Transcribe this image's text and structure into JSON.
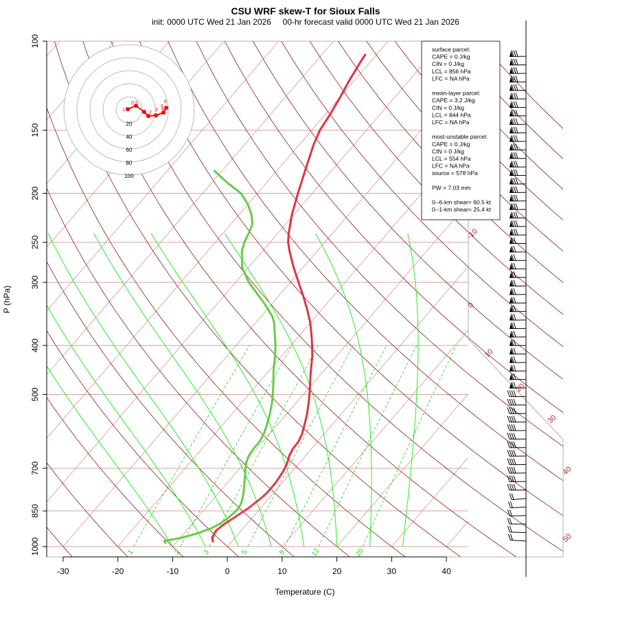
{
  "chart_data": {
    "type": "skew-t",
    "title": "CSU WRF skew-T for Sioux Falls",
    "subtitle": "init: 0000 UTC Wed 21 Jan 2026     00-hr forecast valid 0000 UTC Wed 21 Jan 2026",
    "xlabel": "Temperature (C)",
    "ylabel": "P (hPa)",
    "xlim": [
      -33,
      44
    ],
    "ylim": [
      1000,
      100
    ],
    "y_log_scale": true,
    "x_ticks": [
      -30,
      -20,
      -10,
      0,
      10,
      20,
      30,
      40
    ],
    "p_ticks": [
      100,
      150,
      200,
      250,
      300,
      400,
      500,
      700,
      850,
      1000
    ],
    "p_gridlines": [
      100,
      150,
      200,
      250,
      300,
      400,
      500,
      700,
      850,
      1000
    ],
    "isotherm_labels": [
      "-10",
      "0",
      "10",
      "20",
      "30",
      "40",
      "50"
    ],
    "mixing_ratio_labels": [
      "1",
      "2",
      "3",
      "5",
      "8",
      "12",
      "20"
    ],
    "colors": {
      "temperature": "#dd3344",
      "dewpoint": "#66cc44",
      "virtual_temperature": "#ee6677",
      "dry_adiabat": "#8b1a1a",
      "moist_adiabat": "#22ee22",
      "mixing_ratio": "#22cc22",
      "isotherm": "#d9a0a0",
      "isobar": "#d9a0a0",
      "hodograph_trace": "#ff0000"
    },
    "series": [
      {
        "name": "temperature",
        "points": [
          {
            "p": 980,
            "t": -3.3
          },
          {
            "p": 960,
            "t": -4.2
          },
          {
            "p": 930,
            "t": -4.6
          },
          {
            "p": 900,
            "t": -4.0
          },
          {
            "p": 880,
            "t": -3.4
          },
          {
            "p": 860,
            "t": -2.8
          },
          {
            "p": 840,
            "t": -2.2
          },
          {
            "p": 820,
            "t": -1.8
          },
          {
            "p": 800,
            "t": -1.4
          },
          {
            "p": 780,
            "t": -1.2
          },
          {
            "p": 750,
            "t": -1.2
          },
          {
            "p": 720,
            "t": -1.5
          },
          {
            "p": 700,
            "t": -1.8
          },
          {
            "p": 680,
            "t": -2.3
          },
          {
            "p": 660,
            "t": -3.0
          },
          {
            "p": 640,
            "t": -3.4
          },
          {
            "p": 620,
            "t": -3.5
          },
          {
            "p": 600,
            "t": -4.0
          },
          {
            "p": 580,
            "t": -4.8
          },
          {
            "p": 550,
            "t": -6.1
          },
          {
            "p": 520,
            "t": -7.7
          },
          {
            "p": 500,
            "t": -8.9
          },
          {
            "p": 470,
            "t": -10.9
          },
          {
            "p": 450,
            "t": -12.3
          },
          {
            "p": 420,
            "t": -14.4
          },
          {
            "p": 400,
            "t": -16.1
          },
          {
            "p": 380,
            "t": -18.0
          },
          {
            "p": 360,
            "t": -20.1
          },
          {
            "p": 340,
            "t": -22.6
          },
          {
            "p": 320,
            "t": -25.4
          },
          {
            "p": 300,
            "t": -28.5
          },
          {
            "p": 280,
            "t": -31.8
          },
          {
            "p": 260,
            "t": -35.1
          },
          {
            "p": 250,
            "t": -36.7
          },
          {
            "p": 240,
            "t": -38.0
          },
          {
            "p": 220,
            "t": -40.4
          },
          {
            "p": 200,
            "t": -42.6
          },
          {
            "p": 180,
            "t": -44.9
          },
          {
            "p": 160,
            "t": -47.4
          },
          {
            "p": 150,
            "t": -48.5
          },
          {
            "p": 140,
            "t": -49.1
          },
          {
            "p": 130,
            "t": -49.9
          },
          {
            "p": 120,
            "t": -50.9
          },
          {
            "p": 110,
            "t": -51.8
          },
          {
            "p": 106,
            "t": -52.1
          }
        ]
      },
      {
        "name": "dewpoint",
        "points": [
          {
            "p": 986,
            "t": -11.7
          },
          {
            "p": 975,
            "t": -12.4
          },
          {
            "p": 960,
            "t": -9.7
          },
          {
            "p": 940,
            "t": -7.4
          },
          {
            "p": 920,
            "t": -5.8
          },
          {
            "p": 900,
            "t": -4.9
          },
          {
            "p": 880,
            "t": -4.4
          },
          {
            "p": 860,
            "t": -4.1
          },
          {
            "p": 840,
            "t": -4.0
          },
          {
            "p": 820,
            "t": -4.3
          },
          {
            "p": 800,
            "t": -4.9
          },
          {
            "p": 780,
            "t": -5.6
          },
          {
            "p": 750,
            "t": -6.8
          },
          {
            "p": 720,
            "t": -8.1
          },
          {
            "p": 700,
            "t": -9.0
          },
          {
            "p": 680,
            "t": -9.8
          },
          {
            "p": 660,
            "t": -10.4
          },
          {
            "p": 640,
            "t": -10.6
          },
          {
            "p": 620,
            "t": -10.6
          },
          {
            "p": 600,
            "t": -11.0
          },
          {
            "p": 580,
            "t": -11.7
          },
          {
            "p": 550,
            "t": -12.9
          },
          {
            "p": 520,
            "t": -14.4
          },
          {
            "p": 500,
            "t": -15.6
          },
          {
            "p": 470,
            "t": -17.6
          },
          {
            "p": 450,
            "t": -19.1
          },
          {
            "p": 420,
            "t": -21.2
          },
          {
            "p": 400,
            "t": -22.8
          },
          {
            "p": 380,
            "t": -24.7
          },
          {
            "p": 360,
            "t": -26.7
          },
          {
            "p": 350,
            "t": -28.0
          },
          {
            "p": 330,
            "t": -31.5
          },
          {
            "p": 310,
            "t": -35.5
          },
          {
            "p": 300,
            "t": -37.6
          },
          {
            "p": 280,
            "t": -41.2
          },
          {
            "p": 260,
            "t": -43.8
          },
          {
            "p": 250,
            "t": -44.7
          },
          {
            "p": 240,
            "t": -45.3
          },
          {
            "p": 230,
            "t": -46.1
          },
          {
            "p": 220,
            "t": -47.8
          },
          {
            "p": 210,
            "t": -50.1
          },
          {
            "p": 200,
            "t": -53.0
          },
          {
            "p": 190,
            "t": -57.4
          },
          {
            "p": 180,
            "t": -61.6
          }
        ]
      }
    ],
    "wind_barbs_side": "right",
    "hodograph": {
      "rings": [
        20,
        40,
        60,
        80,
        100
      ],
      "height_labels": [
        "0.5",
        "1",
        "2",
        "3",
        "4",
        "5",
        "6"
      ]
    },
    "info_box": {
      "lines": [
        "surface parcel:",
        "CAPE = 0 J/kg",
        "CIN = 0 J/kg",
        "LCL = 856 hPa",
        "LFC = NA hPa",
        "",
        "mean-layer parcel:",
        "CAPE = 3.2 J/kg",
        "CIN = 0 J/kg",
        "LCL = 844 hPa",
        "LFC = NA hPa",
        "",
        "most-unstable parcel:",
        "CAPE = 0 J/kg",
        "CIN = 0 J/kg",
        "LCL = 554 hPa",
        "LFC = NA hPa",
        "source = 578 hPa",
        "",
        "PW =  7.03 mm",
        "",
        "0--6-km shear= 60.5 kt",
        "0--1-km shear= 25.4 kt"
      ]
    }
  }
}
